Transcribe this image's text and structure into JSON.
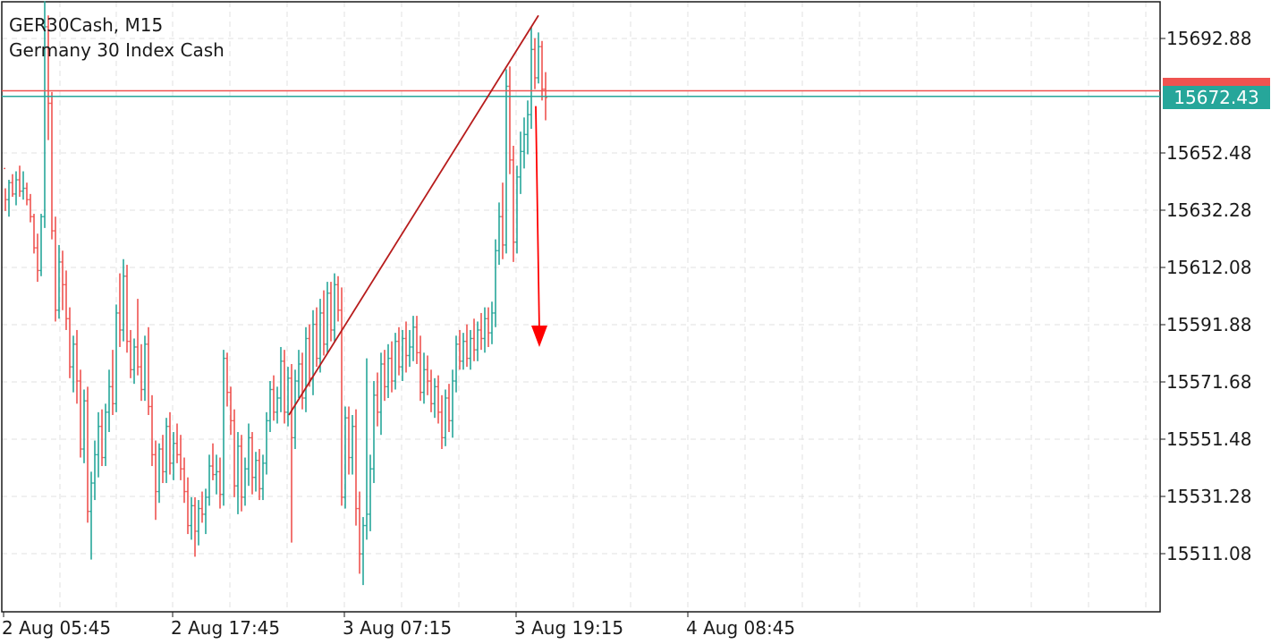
{
  "header": {
    "symbol_line": "GER30Cash, M15",
    "name_line": "Germany 30 Index Cash"
  },
  "colors": {
    "up": "#26a69a",
    "down": "#ef5350",
    "trendline": "#b71c1c",
    "arrow": "#ff0000",
    "ask_line": "#ef5350",
    "bid_line": "#26a69a",
    "grid": "#e0e0e0"
  },
  "chart_data": {
    "type": "ohlc",
    "symbol": "GER30Cash",
    "timeframe": "M15",
    "y_ticks": [
      "15692.88",
      "15652.48",
      "15632.28",
      "15612.08",
      "15591.88",
      "15571.68",
      "15551.48",
      "15531.28",
      "15511.08"
    ],
    "x_ticks": [
      "2 Aug 05:45",
      "2 Aug 17:45",
      "3 Aug 07:15",
      "3 Aug 19:15",
      "4 Aug 08:45"
    ],
    "ylim": [
      15493,
      15705
    ],
    "grid": true,
    "current_bid": "15672.43",
    "current_ask": "15674.43",
    "bars": [
      [
        15647,
        15640,
        15632,
        15636
      ],
      [
        15636,
        15643,
        15630,
        15642
      ],
      [
        15642,
        15645,
        15637,
        15638
      ],
      [
        15638,
        15646,
        15634,
        15643
      ],
      [
        15643,
        15648,
        15637,
        15639
      ],
      [
        15639,
        15646,
        15636,
        15640
      ],
      [
        15640,
        15642,
        15634,
        15636
      ],
      [
        15636,
        15638,
        15628,
        15630
      ],
      [
        15630,
        15631,
        15617,
        15619
      ],
      [
        15619,
        15624,
        15607,
        15611
      ],
      [
        15611,
        15631,
        15609,
        15630
      ],
      [
        15630,
        15706,
        15626,
        15697
      ],
      [
        15697,
        15701,
        15657,
        15670
      ],
      [
        15670,
        15674,
        15622,
        15625
      ],
      [
        15625,
        15630,
        15593,
        15597
      ],
      [
        15597,
        15620,
        15594,
        15614
      ],
      [
        15614,
        15618,
        15597,
        15606
      ],
      [
        15606,
        15611,
        15590,
        15594
      ],
      [
        15594,
        15598,
        15573,
        15577
      ],
      [
        15577,
        15588,
        15568,
        15585
      ],
      [
        15585,
        15590,
        15564,
        15572
      ],
      [
        15572,
        15576,
        15545,
        15548
      ],
      [
        15548,
        15569,
        15543,
        15565
      ],
      [
        15565,
        15570,
        15522,
        15526
      ],
      [
        15526,
        15540,
        15509,
        15536
      ],
      [
        15536,
        15551,
        15530,
        15546
      ],
      [
        15546,
        15561,
        15538,
        15556
      ],
      [
        15556,
        15562,
        15542,
        15545
      ],
      [
        15545,
        15564,
        15542,
        15561
      ],
      [
        15561,
        15576,
        15554,
        15570
      ],
      [
        15570,
        15583,
        15560,
        15564
      ],
      [
        15564,
        15599,
        15561,
        15596
      ],
      [
        15596,
        15610,
        15584,
        15590
      ],
      [
        15590,
        15615,
        15586,
        15609
      ],
      [
        15609,
        15613,
        15582,
        15586
      ],
      [
        15586,
        15590,
        15573,
        15576
      ],
      [
        15576,
        15587,
        15571,
        15584
      ],
      [
        15584,
        15601,
        15574,
        15577
      ],
      [
        15577,
        15585,
        15565,
        15569
      ],
      [
        15569,
        15588,
        15565,
        15585
      ],
      [
        15585,
        15591,
        15560,
        15563
      ],
      [
        15563,
        15567,
        15542,
        15546
      ],
      [
        15546,
        15551,
        15523,
        15533
      ],
      [
        15533,
        15550,
        15529,
        15548
      ],
      [
        15548,
        15553,
        15536,
        15540
      ],
      [
        15540,
        15559,
        15536,
        15556
      ],
      [
        15556,
        15561,
        15539,
        15543
      ],
      [
        15543,
        15554,
        15537,
        15550
      ],
      [
        15550,
        15557,
        15543,
        15546
      ],
      [
        15546,
        15553,
        15537,
        15541
      ],
      [
        15541,
        15545,
        15529,
        15533
      ],
      [
        15533,
        15538,
        15518,
        15521
      ],
      [
        15521,
        15531,
        15516,
        15528
      ],
      [
        15528,
        15531,
        15510,
        15519
      ],
      [
        15519,
        15530,
        15514,
        15527
      ],
      [
        15527,
        15533,
        15522,
        15525
      ],
      [
        15525,
        15534,
        15518,
        15531
      ],
      [
        15531,
        15546,
        15528,
        15542
      ],
      [
        15542,
        15550,
        15537,
        15539
      ],
      [
        15539,
        15546,
        15532,
        15540
      ],
      [
        15540,
        15545,
        15527,
        15532
      ],
      [
        15532,
        15583,
        15528,
        15580
      ],
      [
        15580,
        15582,
        15563,
        15568
      ],
      [
        15568,
        15570,
        15553,
        15558
      ],
      [
        15558,
        15562,
        15531,
        15535
      ],
      [
        15535,
        15554,
        15525,
        15549
      ],
      [
        15549,
        15553,
        15526,
        15531
      ],
      [
        15531,
        15545,
        15528,
        15541
      ],
      [
        15541,
        15557,
        15535,
        15552
      ],
      [
        15552,
        15554,
        15532,
        15538
      ],
      [
        15538,
        15547,
        15533,
        15544
      ],
      [
        15544,
        15548,
        15530,
        15534
      ],
      [
        15534,
        15546,
        15530,
        15543
      ],
      [
        15543,
        15561,
        15539,
        15558
      ],
      [
        15558,
        15572,
        15554,
        15569
      ],
      [
        15569,
        15574,
        15558,
        15561
      ],
      [
        15561,
        15570,
        15557,
        15566
      ],
      [
        15566,
        15584,
        15561,
        15579
      ],
      [
        15579,
        15583,
        15557,
        15561
      ],
      [
        15561,
        15577,
        15556,
        15573
      ],
      [
        15573,
        15578,
        15515,
        15552
      ],
      [
        15552,
        15576,
        15548,
        15572
      ],
      [
        15572,
        15583,
        15566,
        15578
      ],
      [
        15578,
        15582,
        15562,
        15566
      ],
      [
        15566,
        15591,
        15561,
        15587
      ],
      [
        15587,
        15592,
        15570,
        15573
      ],
      [
        15573,
        15597,
        15567,
        15592
      ],
      [
        15592,
        15598,
        15577,
        15580
      ],
      [
        15580,
        15601,
        15575,
        15596
      ],
      [
        15596,
        15604,
        15581,
        15585
      ],
      [
        15585,
        15607,
        15582,
        15603
      ],
      [
        15603,
        15607,
        15586,
        15590
      ],
      [
        15590,
        15610,
        15586,
        15606
      ],
      [
        15606,
        15609,
        15593,
        15597
      ],
      [
        15597,
        15605,
        15528,
        15531
      ],
      [
        15531,
        15563,
        15527,
        15559
      ],
      [
        15559,
        15563,
        15539,
        15545
      ],
      [
        15545,
        15560,
        15539,
        15556
      ],
      [
        15556,
        15562,
        15521,
        15527
      ],
      [
        15527,
        15533,
        15504,
        15511
      ],
      [
        15511,
        15524,
        15500,
        15521
      ],
      [
        15521,
        15580,
        15516,
        15525
      ],
      [
        15525,
        15546,
        15519,
        15541
      ],
      [
        15541,
        15572,
        15536,
        15567
      ],
      [
        15567,
        15575,
        15556,
        15561
      ],
      [
        15561,
        15582,
        15553,
        15578
      ],
      [
        15578,
        15583,
        15565,
        15570
      ],
      [
        15570,
        15585,
        15566,
        15580
      ],
      [
        15580,
        15586,
        15568,
        15572
      ],
      [
        15572,
        15589,
        15569,
        15586
      ],
      [
        15586,
        15591,
        15574,
        15577
      ],
      [
        15577,
        15590,
        15572,
        15587
      ],
      [
        15587,
        15593,
        15575,
        15581
      ],
      [
        15581,
        15590,
        15577,
        15584
      ],
      [
        15584,
        15595,
        15579,
        15591
      ],
      [
        15591,
        15595,
        15578,
        15582
      ],
      [
        15582,
        15588,
        15565,
        15568
      ],
      [
        15568,
        15582,
        15564,
        15576
      ],
      [
        15576,
        15581,
        15567,
        15572
      ],
      [
        15572,
        15576,
        15561,
        15564
      ],
      [
        15564,
        15573,
        15559,
        15570
      ],
      [
        15570,
        15574,
        15557,
        15561
      ],
      [
        15561,
        15567,
        15548,
        15552
      ],
      [
        15552,
        15569,
        15549,
        15566
      ],
      [
        15566,
        15571,
        15554,
        15558
      ],
      [
        15558,
        15576,
        15552,
        15572
      ],
      [
        15572,
        15588,
        15568,
        15585
      ],
      [
        15585,
        15590,
        15576,
        15579
      ],
      [
        15579,
        15589,
        15576,
        15586
      ],
      [
        15586,
        15592,
        15577,
        15580
      ],
      [
        15580,
        15590,
        15576,
        15587
      ],
      [
        15587,
        15594,
        15579,
        15583
      ],
      [
        15583,
        15593,
        15579,
        15590
      ],
      [
        15590,
        15596,
        15583,
        15587
      ],
      [
        15587,
        15598,
        15582,
        15594
      ],
      [
        15594,
        15598,
        15584,
        15589
      ],
      [
        15589,
        15600,
        15585,
        15596
      ],
      [
        15596,
        15622,
        15591,
        15618
      ],
      [
        15618,
        15635,
        15613,
        15630
      ],
      [
        15630,
        15642,
        15615,
        15620
      ],
      [
        15620,
        15682,
        15617,
        15676
      ],
      [
        15676,
        15683,
        15645,
        15650
      ],
      [
        15650,
        15655,
        15614,
        15621
      ],
      [
        15621,
        15648,
        15617,
        15644
      ],
      [
        15644,
        15660,
        15638,
        15653
      ],
      [
        15653,
        15665,
        15647,
        15659
      ],
      [
        15659,
        15671,
        15652,
        15666
      ],
      [
        15666,
        15697,
        15661,
        15689
      ],
      [
        15689,
        15693,
        15675,
        15679
      ],
      [
        15679,
        15695,
        15677,
        15690
      ],
      [
        15690,
        15692,
        15671,
        15675
      ],
      [
        15675,
        15681,
        15664,
        15672
      ]
    ]
  },
  "annotations": {
    "trendline": {
      "from_bar": 79,
      "from_price": 15560,
      "to_bar": 148,
      "to_price": 15701
    },
    "arrow": {
      "from_bar": 147,
      "from_price": 15669,
      "to_bar": 148,
      "to_price": 15584
    }
  }
}
